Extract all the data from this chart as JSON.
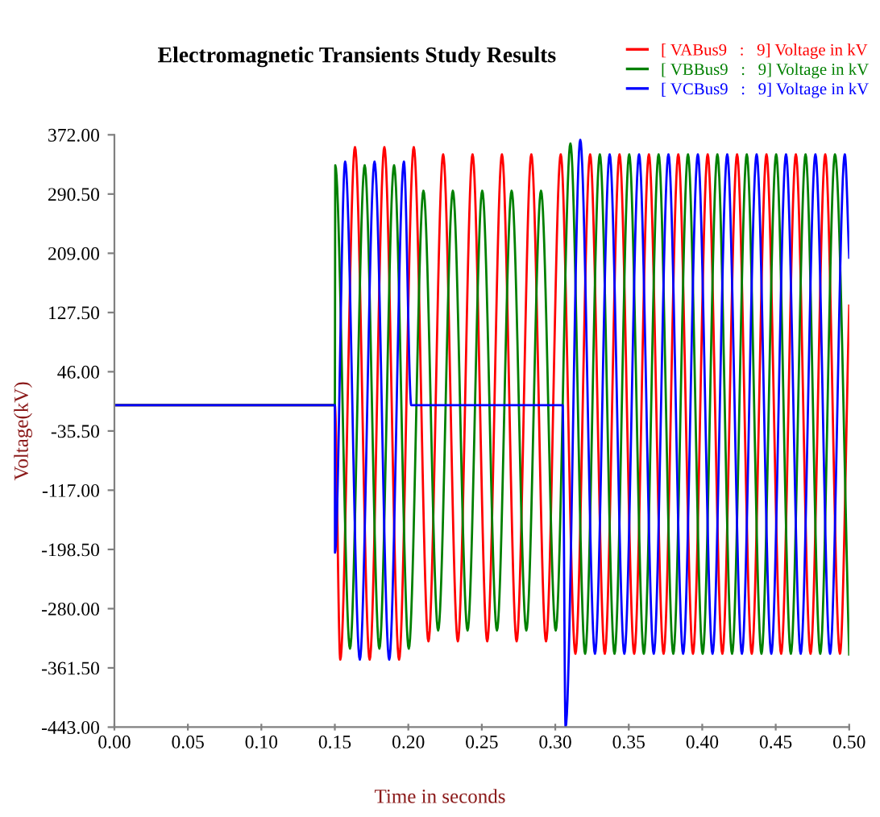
{
  "chart_data": {
    "type": "line",
    "title": "Electromagnetic Transients Study Results",
    "xlabel": "Time in seconds",
    "ylabel": "Voltage(kV)",
    "xlim": [
      0,
      0.5
    ],
    "xticks": [
      {
        "value": 0,
        "label": "0.00"
      },
      {
        "value": 0.05,
        "label": "0.05"
      },
      {
        "value": 0.1,
        "label": "0.10"
      },
      {
        "value": 0.15,
        "label": "0.15"
      },
      {
        "value": 0.2,
        "label": "0.20"
      },
      {
        "value": 0.25,
        "label": "0.25"
      },
      {
        "value": 0.3,
        "label": "0.30"
      },
      {
        "value": 0.35,
        "label": "0.35"
      },
      {
        "value": 0.4,
        "label": "0.40"
      },
      {
        "value": 0.45,
        "label": "0.45"
      },
      {
        "value": 0.5,
        "label": "0.50"
      }
    ],
    "ylim": [
      -443,
      372
    ],
    "yticks": [
      {
        "value": 372,
        "label": "372.00"
      },
      {
        "value": 290.5,
        "label": "290.50"
      },
      {
        "value": 209,
        "label": "209.00"
      },
      {
        "value": 127.5,
        "label": "127.50"
      },
      {
        "value": 46,
        "label": "46.00"
      },
      {
        "value": -35.5,
        "label": "-35.50"
      },
      {
        "value": -117,
        "label": "-117.00"
      },
      {
        "value": -198.5,
        "label": "-198.50"
      },
      {
        "value": -280,
        "label": "-280.00"
      },
      {
        "value": -361.5,
        "label": "-361.50"
      },
      {
        "value": -443,
        "label": "-443.00"
      }
    ],
    "grid": false,
    "legend": "top right",
    "marker": "none",
    "line_style": "solid",
    "series": [
      {
        "name": "[ VABus9   :   9] Voltage in kV",
        "color": "#ff0000",
        "x": [
          0,
          0.15,
          0.1537,
          0.1637,
          0.1737,
          0.1837,
          0.1937,
          0.2037,
          0.2137,
          0.2237,
          0.2337,
          0.2437,
          0.2537,
          0.2637,
          0.2737,
          0.2837,
          0.2937,
          0.3037,
          0.3137,
          0.3237,
          0.3337,
          0.3437,
          0.3537,
          0.3637,
          0.3737,
          0.3837,
          0.3937,
          0.4037,
          0.4137,
          0.4237,
          0.4337,
          0.4437,
          0.4537,
          0.4637,
          0.4737,
          0.4837,
          0.4937,
          0.5
        ],
        "values": [
          0,
          0,
          -350,
          355,
          -350,
          355,
          -350,
          355,
          -325,
          345,
          -325,
          345,
          -325,
          345,
          -325,
          345,
          -325,
          345,
          -342,
          345,
          -342,
          345,
          -342,
          345,
          -342,
          345,
          -342,
          345,
          -342,
          345,
          -342,
          345,
          -342,
          345,
          -342,
          345,
          -342,
          137
        ]
      },
      {
        "name": "[ VBBus9   :   9] Voltage in kV",
        "color": "#008000",
        "x": [
          0,
          0.15,
          0.1503,
          0.1603,
          0.1703,
          0.1803,
          0.1903,
          0.2003,
          0.2103,
          0.2203,
          0.2303,
          0.2403,
          0.2503,
          0.2603,
          0.2703,
          0.2803,
          0.2903,
          0.3003,
          0.3103,
          0.3203,
          0.3303,
          0.3403,
          0.3503,
          0.3603,
          0.3703,
          0.3803,
          0.3903,
          0.4003,
          0.4103,
          0.4203,
          0.4303,
          0.4403,
          0.4503,
          0.4603,
          0.4703,
          0.4803,
          0.4903,
          0.5
        ],
        "values": [
          0,
          0,
          330,
          -335,
          330,
          -335,
          330,
          -335,
          295,
          -310,
          295,
          -310,
          295,
          -310,
          295,
          -310,
          295,
          -310,
          360,
          -342,
          345,
          -342,
          345,
          -342,
          345,
          -342,
          345,
          -342,
          345,
          -342,
          345,
          -342,
          345,
          -342,
          345,
          -342,
          345,
          -343
        ]
      },
      {
        "name": "[ VCBus9   :   9] Voltage in kV",
        "color": "#0000ff",
        "x": [
          0,
          0.15,
          0.1501,
          0.157,
          0.167,
          0.177,
          0.187,
          0.197,
          0.202,
          0.305,
          0.307,
          0.317,
          0.327,
          0.337,
          0.347,
          0.357,
          0.367,
          0.377,
          0.387,
          0.397,
          0.407,
          0.417,
          0.427,
          0.437,
          0.447,
          0.457,
          0.467,
          0.477,
          0.487,
          0.497,
          0.5
        ],
        "values": [
          0,
          0,
          -203,
          335,
          -350,
          335,
          -350,
          335,
          0,
          0,
          -443,
          365,
          -342,
          345,
          -342,
          345,
          -342,
          345,
          -342,
          345,
          -342,
          345,
          -342,
          345,
          -342,
          345,
          -342,
          345,
          -342,
          345,
          203
        ]
      }
    ]
  }
}
